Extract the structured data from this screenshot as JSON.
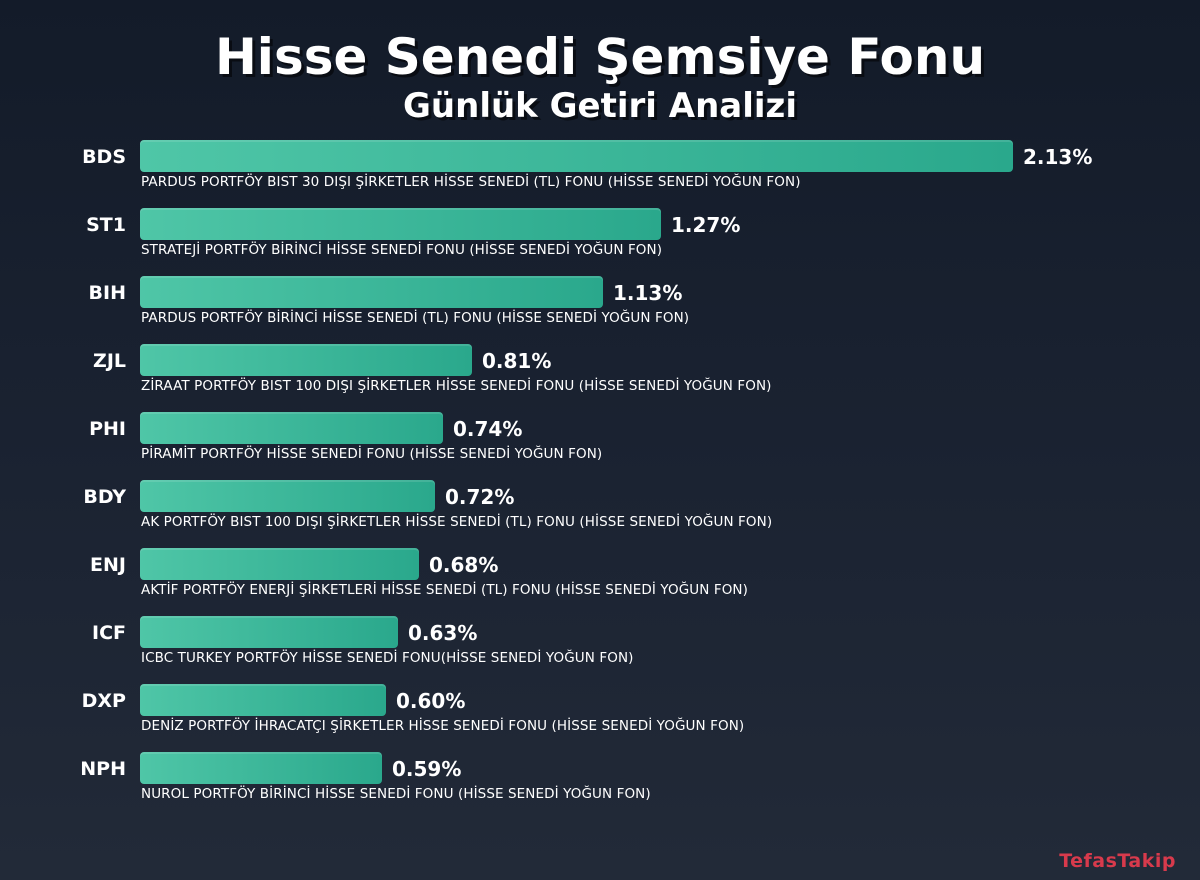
{
  "chart_data": {
    "type": "bar",
    "orientation": "horizontal",
    "title": "Hisse Senedi Şemsiye Fonu",
    "subtitle": "Günlük Getiri Analizi",
    "unit": "%",
    "xlim": [
      0,
      2.13
    ],
    "grid": false,
    "bar_color": "#3dbb9b",
    "items": [
      {
        "code": "BDS",
        "value": 2.13,
        "label": "2.13%",
        "name": "PARDUS PORTFÖY BIST 30 DIŞI ŞİRKETLER HİSSE SENEDİ (TL) FONU (HİSSE SENEDİ YOĞUN FON)"
      },
      {
        "code": "ST1",
        "value": 1.27,
        "label": "1.27%",
        "name": "STRATEJİ PORTFÖY BİRİNCİ HİSSE SENEDİ FONU (HİSSE SENEDİ YOĞUN FON)"
      },
      {
        "code": "BIH",
        "value": 1.13,
        "label": "1.13%",
        "name": "PARDUS PORTFÖY BİRİNCİ HİSSE SENEDİ (TL) FONU (HİSSE SENEDİ YOĞUN FON)"
      },
      {
        "code": "ZJL",
        "value": 0.81,
        "label": "0.81%",
        "name": "ZİRAAT PORTFÖY BIST 100 DIŞI ŞİRKETLER HİSSE SENEDİ FONU (HİSSE SENEDİ YOĞUN FON)"
      },
      {
        "code": "PHI",
        "value": 0.74,
        "label": "0.74%",
        "name": "PİRAMİT PORTFÖY HİSSE SENEDİ FONU (HİSSE SENEDİ YOĞUN FON)"
      },
      {
        "code": "BDY",
        "value": 0.72,
        "label": "0.72%",
        "name": "AK PORTFÖY BIST 100 DIŞI ŞİRKETLER HİSSE SENEDİ (TL) FONU (HİSSE SENEDİ YOĞUN FON)"
      },
      {
        "code": "ENJ",
        "value": 0.68,
        "label": "0.68%",
        "name": "AKTİF PORTFÖY ENERJİ ŞİRKETLERİ HİSSE SENEDİ (TL) FONU (HİSSE SENEDİ YOĞUN FON)"
      },
      {
        "code": "ICF",
        "value": 0.63,
        "label": "0.63%",
        "name": "ICBC TURKEY PORTFÖY HİSSE SENEDİ FONU(HİSSE SENEDİ YOĞUN FON)"
      },
      {
        "code": "DXP",
        "value": 0.6,
        "label": "0.60%",
        "name": "DENİZ PORTFÖY İHRACATÇI ŞİRKETLER HİSSE SENEDİ FONU (HİSSE SENEDİ YOĞUN FON)"
      },
      {
        "code": "NPH",
        "value": 0.59,
        "label": "0.59%",
        "name": "NUROL PORTFÖY BİRİNCİ HİSSE SENEDİ FONU (HİSSE SENEDİ YOĞUN FON)"
      }
    ]
  },
  "watermark": "TefasTakip",
  "colors": {
    "background": "#1b2332",
    "bar_start": "#4fc6a7",
    "bar_end": "#2aa88c",
    "watermark": "#d83a4c"
  }
}
